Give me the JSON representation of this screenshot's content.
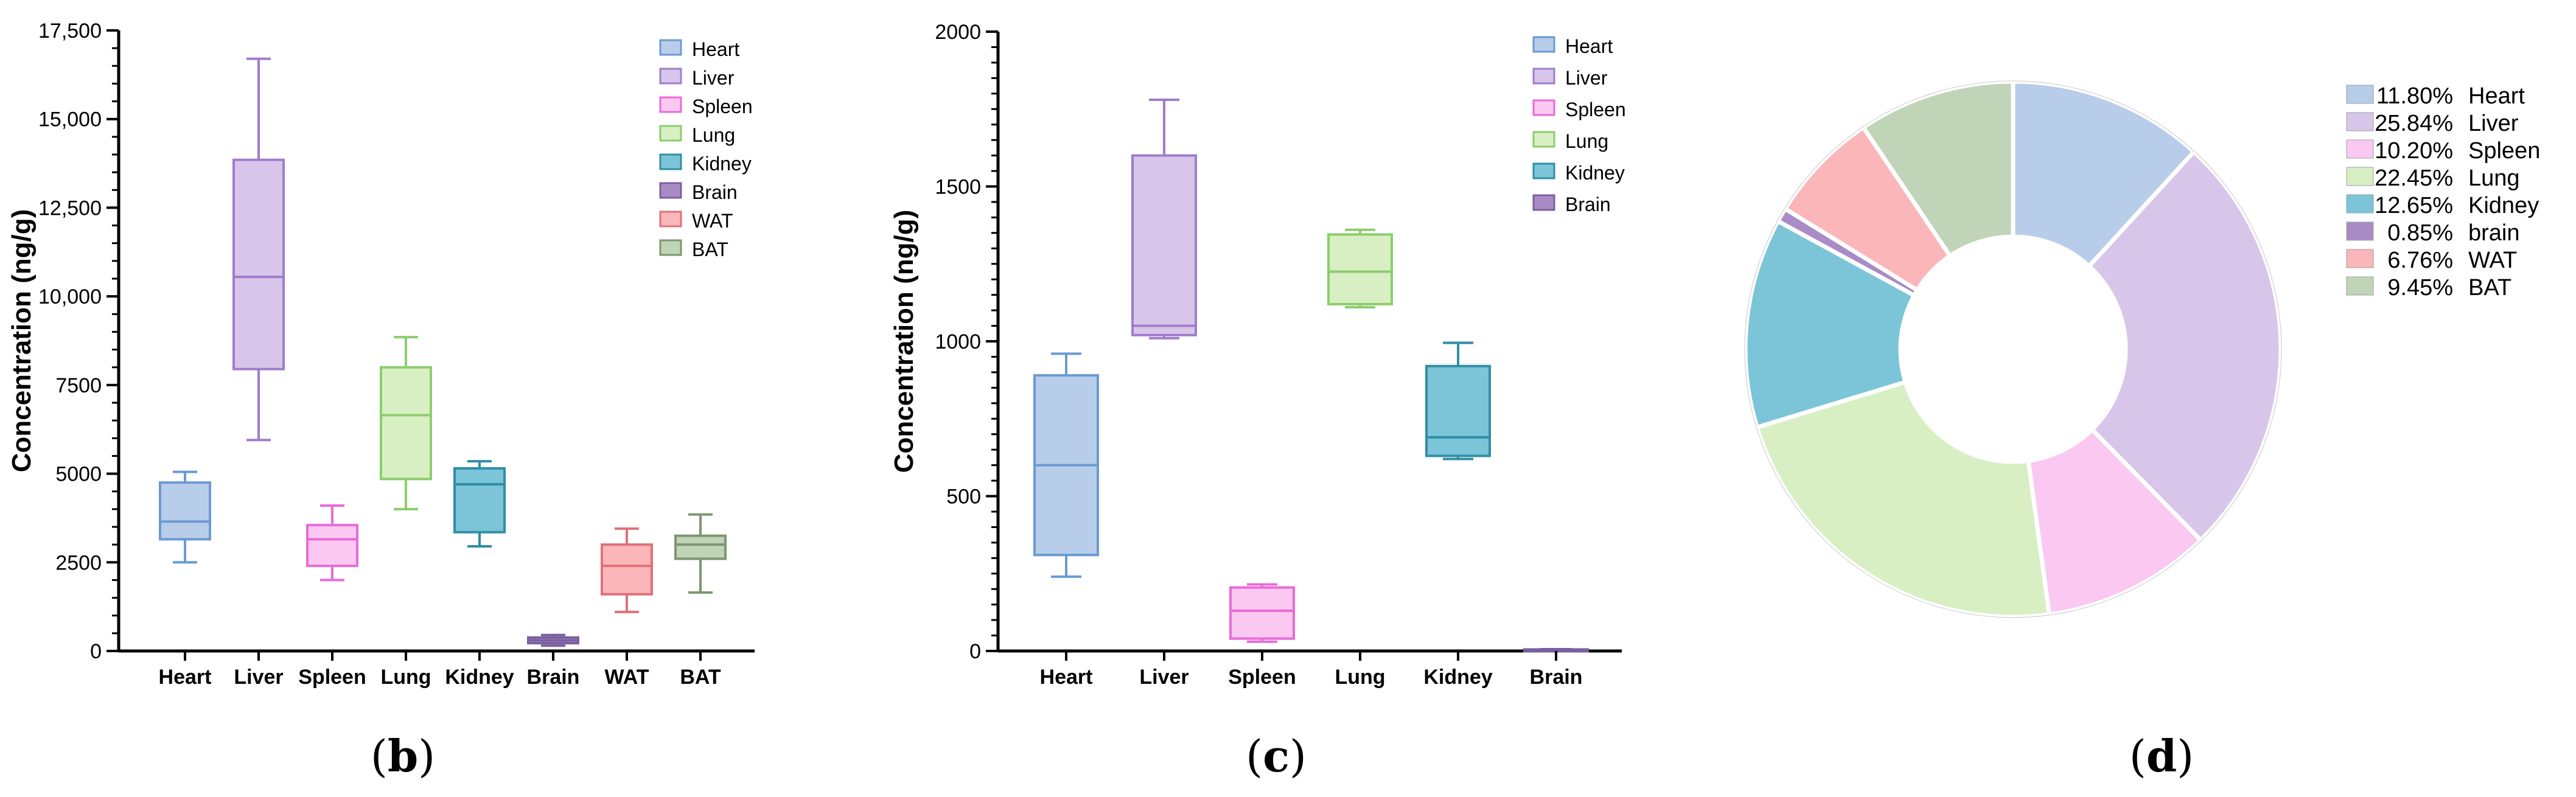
{
  "chart_data": [
    {
      "type": "box",
      "panel_label": "b",
      "ylabel": "Concentration (ng/g)",
      "ylim": [
        0,
        17500
      ],
      "yticks": [
        0,
        2500,
        5000,
        7500,
        10000,
        12500,
        15000,
        17500
      ],
      "ytick_labels": [
        "0",
        "2500",
        "5000",
        "7500",
        "10,000",
        "12,500",
        "15,000",
        "17,500"
      ],
      "categories": [
        "Heart",
        "Liver",
        "Spleen",
        "Lung",
        "Kidney",
        "Brain",
        "WAT",
        "BAT"
      ],
      "boxes": [
        {
          "name": "Heart",
          "min": 2500,
          "q1": 3150,
          "median": 3650,
          "q3": 4750,
          "max": 5050,
          "fill": "#b8cdea",
          "stroke": "#6a9bd1"
        },
        {
          "name": "Liver",
          "min": 5950,
          "q1": 7950,
          "median": 10550,
          "q3": 13850,
          "max": 16700,
          "fill": "#d8c6ea",
          "stroke": "#a07ccb"
        },
        {
          "name": "Spleen",
          "min": 2000,
          "q1": 2400,
          "median": 3150,
          "q3": 3550,
          "max": 4100,
          "fill": "#fbc8f2",
          "stroke": "#e86bd7"
        },
        {
          "name": "Lung",
          "min": 4000,
          "q1": 4850,
          "median": 6650,
          "q3": 8000,
          "max": 8850,
          "fill": "#d8efc4",
          "stroke": "#8ccd6c"
        },
        {
          "name": "Kidney",
          "min": 2950,
          "q1": 3350,
          "median": 4700,
          "q3": 5150,
          "max": 5350,
          "fill": "#7cc5d9",
          "stroke": "#2f8ea5"
        },
        {
          "name": "Brain",
          "min": 150,
          "q1": 220,
          "median": 300,
          "q3": 380,
          "max": 450,
          "fill": "#a98cc5",
          "stroke": "#7a5fa0"
        },
        {
          "name": "WAT",
          "min": 1100,
          "q1": 1600,
          "median": 2400,
          "q3": 3000,
          "max": 3450,
          "fill": "#fbb6b9",
          "stroke": "#e07078"
        },
        {
          "name": "BAT",
          "min": 1650,
          "q1": 2600,
          "median": 3000,
          "q3": 3250,
          "max": 3850,
          "fill": "#c0d4b8",
          "stroke": "#7e9670"
        }
      ],
      "legend": [
        "Heart",
        "Liver",
        "Spleen",
        "Lung",
        "Kidney",
        "Brain",
        "WAT",
        "BAT"
      ]
    },
    {
      "type": "box",
      "panel_label": "c",
      "ylabel": "Concentration (ng/g)",
      "ylim": [
        0,
        2000
      ],
      "yticks": [
        0,
        500,
        1000,
        1500,
        2000
      ],
      "ytick_labels": [
        "0",
        "500",
        "1000",
        "1500",
        "2000"
      ],
      "categories": [
        "Heart",
        "Liver",
        "Spleen",
        "Lung",
        "Kidney",
        "Brain"
      ],
      "boxes": [
        {
          "name": "Heart",
          "min": 240,
          "q1": 310,
          "median": 600,
          "q3": 890,
          "max": 960,
          "fill": "#b8cdea",
          "stroke": "#6a9bd1"
        },
        {
          "name": "Liver",
          "min": 1010,
          "q1": 1020,
          "median": 1050,
          "q3": 1600,
          "max": 1780,
          "fill": "#d8c6ea",
          "stroke": "#a07ccb"
        },
        {
          "name": "Spleen",
          "min": 30,
          "q1": 40,
          "median": 130,
          "q3": 205,
          "max": 215,
          "fill": "#fbc8f2",
          "stroke": "#e86bd7"
        },
        {
          "name": "Lung",
          "min": 1110,
          "q1": 1120,
          "median": 1225,
          "q3": 1345,
          "max": 1360,
          "fill": "#d8efc4",
          "stroke": "#8ccd6c"
        },
        {
          "name": "Kidney",
          "min": 620,
          "q1": 630,
          "median": 690,
          "q3": 920,
          "max": 995,
          "fill": "#7cc5d9",
          "stroke": "#2f8ea5"
        },
        {
          "name": "Brain",
          "min": 0,
          "q1": 1,
          "median": 3,
          "q3": 5,
          "max": 6,
          "fill": "#a98cc5",
          "stroke": "#7a5fa0"
        }
      ],
      "legend": [
        "Heart",
        "Liver",
        "Spleen",
        "Lung",
        "Kidney",
        "Brain"
      ]
    },
    {
      "type": "pie",
      "donut": true,
      "panel_label": "d",
      "slices": [
        {
          "name": "Heart",
          "value": 11.8,
          "pct_label": "11.80%",
          "label": "Heart",
          "color": "#b8cdea"
        },
        {
          "name": "Liver",
          "value": 25.84,
          "pct_label": "25.84%",
          "label": "Liver",
          "color": "#d8c6ea"
        },
        {
          "name": "Spleen",
          "value": 10.2,
          "pct_label": "10.20%",
          "label": "Spleen",
          "color": "#fbc8f2"
        },
        {
          "name": "Lung",
          "value": 22.45,
          "pct_label": "22.45%",
          "label": "Lung",
          "color": "#d8efc4"
        },
        {
          "name": "Kidney",
          "value": 12.65,
          "pct_label": "12.65%",
          "label": "Kidney",
          "color": "#7cc5d9"
        },
        {
          "name": "brain",
          "value": 0.85,
          "pct_label": "0.85%",
          "label": "brain",
          "color": "#a98cc5"
        },
        {
          "name": "WAT",
          "value": 6.76,
          "pct_label": "6.76%",
          "label": "WAT",
          "color": "#fbb6b9"
        },
        {
          "name": "BAT",
          "value": 9.45,
          "pct_label": "9.45%",
          "label": "BAT",
          "color": "#c0d4b8"
        }
      ]
    }
  ]
}
